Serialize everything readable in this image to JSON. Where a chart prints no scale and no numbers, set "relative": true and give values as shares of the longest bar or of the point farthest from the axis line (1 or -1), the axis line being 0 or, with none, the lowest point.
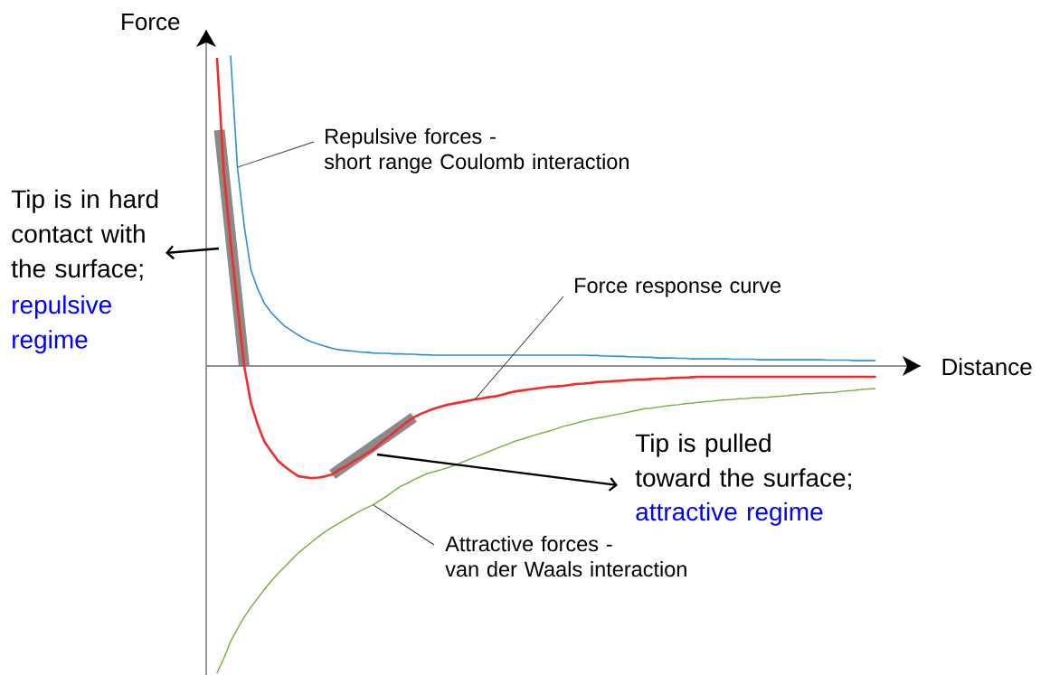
{
  "chart_data": {
    "type": "line",
    "relative": true,
    "xlabel": "Distance",
    "ylabel": "Force",
    "marker": "none",
    "line_style": "solid",
    "categories": [
      null,
      null,
      null,
      null,
      null,
      null,
      null,
      null,
      null,
      null,
      null,
      null,
      null,
      null,
      null,
      null,
      null,
      null,
      null,
      null,
      null,
      null,
      null,
      null,
      null,
      null,
      null,
      null,
      null,
      null,
      null,
      null,
      null,
      null,
      null,
      null,
      null,
      null,
      null,
      null,
      null,
      null,
      null,
      null,
      null,
      null,
      null,
      null,
      null,
      null,
      null,
      null,
      null,
      null,
      null,
      null,
      null,
      null,
      null,
      null,
      null,
      null,
      null,
      null,
      null,
      null,
      null,
      null,
      null,
      null,
      null,
      null,
      null,
      null,
      null,
      null,
      null,
      null,
      null,
      null,
      null,
      null,
      null,
      null,
      null,
      null,
      null,
      null,
      null,
      null,
      null,
      null,
      null,
      null,
      null,
      null,
      null,
      null
    ],
    "series": [
      {
        "color": "#2b90d9",
        "values": [
          null,
          null,
          1.0,
          0.641,
          0.452,
          0.309,
          0.248,
          0.201,
          0.172,
          0.149,
          0.128,
          0.114,
          0.099,
          0.087,
          0.077,
          0.07,
          0.063,
          0.057,
          0.052,
          0.05,
          0.048,
          0.045,
          0.044,
          0.042,
          0.041,
          0.041,
          0.039,
          0.039,
          0.038,
          0.038,
          0.036,
          0.036,
          0.035,
          0.035,
          0.035,
          0.035,
          0.035,
          0.035,
          0.035,
          0.035,
          0.035,
          0.035,
          0.035,
          0.035,
          0.035,
          0.035,
          0.035,
          0.035,
          0.035,
          0.035,
          0.035,
          0.035,
          0.035,
          0.035,
          0.035,
          0.034,
          0.034,
          0.032,
          0.032,
          0.031,
          0.031,
          0.029,
          0.029,
          0.028,
          0.028,
          0.026,
          0.026,
          0.026,
          0.025,
          0.025,
          0.023,
          0.023,
          0.023,
          0.023,
          0.023,
          0.023,
          0.022,
          0.022,
          0.022,
          0.022,
          0.02,
          0.02,
          0.02,
          0.02,
          0.02,
          0.02,
          0.02,
          0.02,
          0.02,
          0.02,
          0.019,
          0.019,
          0.019,
          0.019,
          0.017,
          0.017,
          0.017,
          0.017
        ]
      },
      {
        "color": "#f42b2b",
        "values": [
          0.991,
          0.624,
          0.399,
          0.198,
          0,
          -0.12,
          -0.19,
          -0.245,
          -0.276,
          -0.306,
          -0.325,
          -0.341,
          -0.356,
          -0.359,
          -0.362,
          -0.36,
          -0.356,
          -0.35,
          -0.335,
          -0.324,
          -0.309,
          -0.297,
          -0.283,
          -0.27,
          -0.251,
          -0.233,
          -0.216,
          -0.198,
          -0.181,
          -0.166,
          -0.155,
          -0.146,
          -0.138,
          -0.131,
          -0.125,
          -0.121,
          -0.117,
          -0.112,
          -0.108,
          -0.105,
          -0.101,
          -0.098,
          -0.093,
          -0.087,
          -0.082,
          -0.079,
          -0.076,
          -0.073,
          -0.07,
          -0.067,
          -0.066,
          -0.064,
          -0.061,
          -0.058,
          -0.057,
          -0.055,
          -0.052,
          -0.051,
          -0.05,
          -0.048,
          -0.047,
          -0.045,
          -0.044,
          -0.044,
          -0.042,
          -0.041,
          -0.041,
          -0.039,
          -0.038,
          -0.038,
          -0.036,
          -0.035,
          -0.035,
          -0.035,
          -0.035,
          -0.035,
          -0.035,
          -0.035,
          -0.035,
          -0.035,
          -0.035,
          -0.035,
          -0.035,
          -0.035,
          -0.035,
          -0.035,
          -0.035,
          -0.035,
          -0.035,
          -0.035,
          -0.035,
          -0.035,
          -0.035,
          -0.035,
          -0.035,
          -0.035,
          -0.035,
          -0.035
        ]
      },
      {
        "color": "#7cb342",
        "values": [
          -0.99,
          -0.943,
          -0.889,
          -0.848,
          -0.81,
          -0.778,
          -0.749,
          -0.72,
          -0.694,
          -0.669,
          -0.647,
          -0.625,
          -0.603,
          -0.585,
          -0.567,
          -0.55,
          -0.534,
          -0.52,
          -0.507,
          -0.494,
          -0.481,
          -0.469,
          -0.458,
          -0.448,
          -0.434,
          -0.42,
          -0.404,
          -0.389,
          -0.379,
          -0.367,
          -0.357,
          -0.347,
          -0.341,
          -0.335,
          -0.328,
          -0.321,
          -0.312,
          -0.303,
          -0.294,
          -0.286,
          -0.277,
          -0.268,
          -0.259,
          -0.251,
          -0.242,
          -0.236,
          -0.229,
          -0.222,
          -0.216,
          -0.21,
          -0.203,
          -0.195,
          -0.19,
          -0.184,
          -0.178,
          -0.173,
          -0.169,
          -0.165,
          -0.16,
          -0.156,
          -0.152,
          -0.147,
          -0.143,
          -0.138,
          -0.136,
          -0.133,
          -0.13,
          -0.127,
          -0.125,
          -0.122,
          -0.12,
          -0.117,
          -0.115,
          -0.114,
          -0.111,
          -0.109,
          -0.108,
          -0.106,
          -0.105,
          -0.103,
          -0.102,
          -0.101,
          -0.099,
          -0.098,
          -0.096,
          -0.093,
          -0.092,
          -0.09,
          -0.089,
          -0.087,
          -0.086,
          -0.085,
          -0.082,
          -0.08,
          -0.079,
          -0.076,
          -0.074,
          -0.073
        ]
      }
    ],
    "annotations": [
      "Repulsive forces -\nshort range Coulomb interaction",
      "Tip is in hard\ncontact with\nthe surface;",
      "repulsive\nregime",
      "Force response curve",
      "Tip is pulled\ntoward the surface;",
      "attractive regime",
      "Attractive forces -\nvan der Waals interaction"
    ]
  }
}
